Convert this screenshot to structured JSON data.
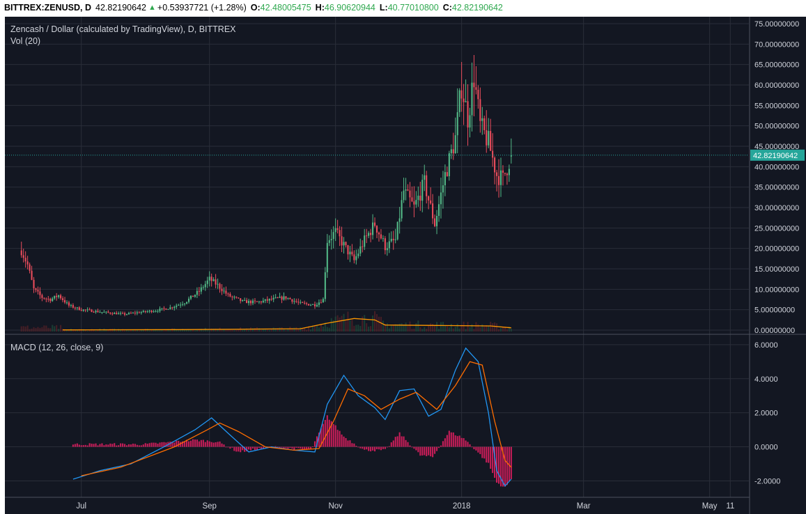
{
  "header": {
    "symbol": "BITTREX:ZENUSD, D",
    "last": "42.82190642",
    "change": "+0.53937721 (+1.28%)",
    "open_label": "O:",
    "open": "42.48005475",
    "high_label": "H:",
    "high": "46.90620944",
    "low_label": "L:",
    "low": "40.77010800",
    "close_label": "C:",
    "close": "42.82190642",
    "up_icon": "triangle-up-icon"
  },
  "legend": {
    "title": "Zencash / Dollar (calculated by TradingView), D, BITTREX",
    "volume": "Vol (20)",
    "macd": "MACD (12, 26, close, 9)"
  },
  "colors": {
    "background": "#131722",
    "grid": "#2a2e39",
    "up": "#53b987",
    "down": "#eb4d5c",
    "macd_line": "#2196f3",
    "signal_line": "#ff6d00",
    "histogram": "#e91e63",
    "volume_ma": "#ff9800",
    "last_price": "#26a69a"
  },
  "price_axis": {
    "ticks": [
      "75.00000000",
      "70.00000000",
      "65.00000000",
      "60.00000000",
      "55.00000000",
      "50.00000000",
      "45.00000000",
      "40.00000000",
      "35.00000000",
      "30.00000000",
      "25.00000000",
      "20.00000000",
      "15.00000000",
      "10.00000000",
      "5.00000000",
      "0.00000000"
    ],
    "last_label": "42.82190642"
  },
  "macd_axis": {
    "ticks": [
      "6.0000",
      "4.0000",
      "2.0000",
      "0.0000",
      "-2.0000"
    ]
  },
  "time_axis": {
    "labels": [
      "Jul",
      "Sep",
      "Nov",
      "2018",
      "Mar",
      "May",
      "11"
    ]
  },
  "chart_data": [
    {
      "type": "candlestick",
      "title": "Zencash / Dollar (calculated by TradingView), D, BITTREX",
      "xlabel": "",
      "ylabel": "",
      "x_range": [
        "2017-06-02",
        "2018-05-11"
      ],
      "ylim": [
        0,
        75
      ],
      "grid": true,
      "last_price": 42.82190642,
      "close_path": [
        [
          "2017-06-02",
          19.5
        ],
        [
          "2017-06-05",
          16.0
        ],
        [
          "2017-06-08",
          10.0
        ],
        [
          "2017-06-12",
          8.0
        ],
        [
          "2017-06-16",
          7.5
        ],
        [
          "2017-06-20",
          8.5
        ],
        [
          "2017-06-25",
          6.0
        ],
        [
          "2017-07-01",
          5.0
        ],
        [
          "2017-07-08",
          4.6
        ],
        [
          "2017-07-15",
          4.2
        ],
        [
          "2017-07-22",
          3.9
        ],
        [
          "2017-07-30",
          4.4
        ],
        [
          "2017-08-06",
          4.8
        ],
        [
          "2017-08-13",
          5.5
        ],
        [
          "2017-08-20",
          6.8
        ],
        [
          "2017-08-27",
          9.5
        ],
        [
          "2017-09-01",
          12.5
        ],
        [
          "2017-09-05",
          11.0
        ],
        [
          "2017-09-10",
          8.5
        ],
        [
          "2017-09-17",
          7.0
        ],
        [
          "2017-09-24",
          6.8
        ],
        [
          "2017-10-01",
          7.5
        ],
        [
          "2017-10-08",
          8.0
        ],
        [
          "2017-10-15",
          6.5
        ],
        [
          "2017-10-22",
          6.2
        ],
        [
          "2017-10-26",
          7.5
        ],
        [
          "2017-10-28",
          22.0
        ],
        [
          "2017-11-01",
          24.0
        ],
        [
          "2017-11-06",
          20.0
        ],
        [
          "2017-11-10",
          17.0
        ],
        [
          "2017-11-15",
          22.0
        ],
        [
          "2017-11-20",
          26.0
        ],
        [
          "2017-11-25",
          20.5
        ],
        [
          "2017-11-30",
          22.0
        ],
        [
          "2017-12-04",
          34.0
        ],
        [
          "2017-12-09",
          30.0
        ],
        [
          "2017-12-14",
          36.0
        ],
        [
          "2017-12-19",
          26.0
        ],
        [
          "2017-12-24",
          38.0
        ],
        [
          "2017-12-29",
          47.0
        ],
        [
          "2018-01-01",
          60.0
        ],
        [
          "2018-01-04",
          52.0
        ],
        [
          "2018-01-07",
          62.0
        ],
        [
          "2018-01-10",
          50.0
        ],
        [
          "2018-01-14",
          46.0
        ],
        [
          "2018-01-18",
          38.0
        ],
        [
          "2018-01-21",
          37.0
        ],
        [
          "2018-01-25",
          42.8
        ]
      ]
    },
    {
      "type": "area",
      "title": "Vol (20)",
      "volume_ma_path": [
        [
          "2017-06-22",
          0.35
        ],
        [
          "2017-08-15",
          0.4
        ],
        [
          "2017-10-15",
          0.6
        ],
        [
          "2017-10-28",
          1.8
        ],
        [
          "2017-11-10",
          2.8
        ],
        [
          "2017-11-20",
          2.5
        ],
        [
          "2017-11-25",
          1.4
        ],
        [
          "2017-12-20",
          1.3
        ],
        [
          "2018-01-15",
          1.2
        ],
        [
          "2018-01-25",
          0.8
        ]
      ]
    },
    {
      "type": "line",
      "title": "MACD (12, 26, close, 9)",
      "ylim": [
        -2.8,
        6.2
      ],
      "series": [
        {
          "name": "MACD",
          "points": [
            [
              "2017-06-27",
              -1.9
            ],
            [
              "2017-07-10",
              -1.4
            ],
            [
              "2017-07-25",
              -1.0
            ],
            [
              "2017-08-10",
              0.0
            ],
            [
              "2017-08-25",
              1.0
            ],
            [
              "2017-09-02",
              1.7
            ],
            [
              "2017-09-10",
              0.8
            ],
            [
              "2017-09-20",
              -0.3
            ],
            [
              "2017-10-01",
              0.0
            ],
            [
              "2017-10-12",
              -0.2
            ],
            [
              "2017-10-22",
              -0.3
            ],
            [
              "2017-10-28",
              2.5
            ],
            [
              "2017-11-05",
              4.2
            ],
            [
              "2017-11-12",
              3.0
            ],
            [
              "2017-11-20",
              2.3
            ],
            [
              "2017-11-25",
              1.6
            ],
            [
              "2017-12-02",
              3.3
            ],
            [
              "2017-12-09",
              3.4
            ],
            [
              "2017-12-16",
              1.8
            ],
            [
              "2017-12-22",
              2.2
            ],
            [
              "2017-12-29",
              4.5
            ],
            [
              "2018-01-03",
              5.8
            ],
            [
              "2018-01-09",
              5.0
            ],
            [
              "2018-01-14",
              2.0
            ],
            [
              "2018-01-18",
              -1.4
            ],
            [
              "2018-01-22",
              -2.3
            ],
            [
              "2018-01-25",
              -1.9
            ]
          ]
        },
        {
          "name": "Signal",
          "points": [
            [
              "2017-07-01",
              -1.7
            ],
            [
              "2017-07-20",
              -1.2
            ],
            [
              "2017-08-15",
              0.0
            ],
            [
              "2017-08-31",
              1.0
            ],
            [
              "2017-09-06",
              1.4
            ],
            [
              "2017-09-15",
              0.9
            ],
            [
              "2017-09-28",
              0.0
            ],
            [
              "2017-10-12",
              -0.2
            ],
            [
              "2017-10-24",
              -0.1
            ],
            [
              "2017-10-31",
              1.5
            ],
            [
              "2017-11-07",
              3.4
            ],
            [
              "2017-11-15",
              3.0
            ],
            [
              "2017-11-23",
              2.2
            ],
            [
              "2017-12-02",
              2.8
            ],
            [
              "2017-12-10",
              3.2
            ],
            [
              "2017-12-20",
              2.2
            ],
            [
              "2017-12-29",
              3.6
            ],
            [
              "2018-01-05",
              5.0
            ],
            [
              "2018-01-11",
              4.8
            ],
            [
              "2018-01-17",
              1.5
            ],
            [
              "2018-01-22",
              -0.8
            ],
            [
              "2018-01-25",
              -1.2
            ]
          ]
        }
      ],
      "histogram_path": [
        [
          "2017-06-27",
          0.15
        ],
        [
          "2017-08-01",
          0.15
        ],
        [
          "2017-08-25",
          0.4
        ],
        [
          "2017-09-05",
          0.3
        ],
        [
          "2017-09-15",
          -0.3
        ],
        [
          "2017-10-01",
          0.0
        ],
        [
          "2017-10-20",
          -0.2
        ],
        [
          "2017-10-28",
          1.8
        ],
        [
          "2017-11-05",
          0.6
        ],
        [
          "2017-11-15",
          -0.2
        ],
        [
          "2017-11-25",
          -0.2
        ],
        [
          "2017-12-02",
          0.8
        ],
        [
          "2017-12-12",
          -0.5
        ],
        [
          "2017-12-18",
          -0.6
        ],
        [
          "2017-12-26",
          0.9
        ],
        [
          "2018-01-02",
          0.5
        ],
        [
          "2018-01-08",
          -0.2
        ],
        [
          "2018-01-14",
          -1.0
        ],
        [
          "2018-01-18",
          -2.1
        ],
        [
          "2018-01-22",
          -2.4
        ],
        [
          "2018-01-25",
          -1.9
        ]
      ]
    }
  ]
}
